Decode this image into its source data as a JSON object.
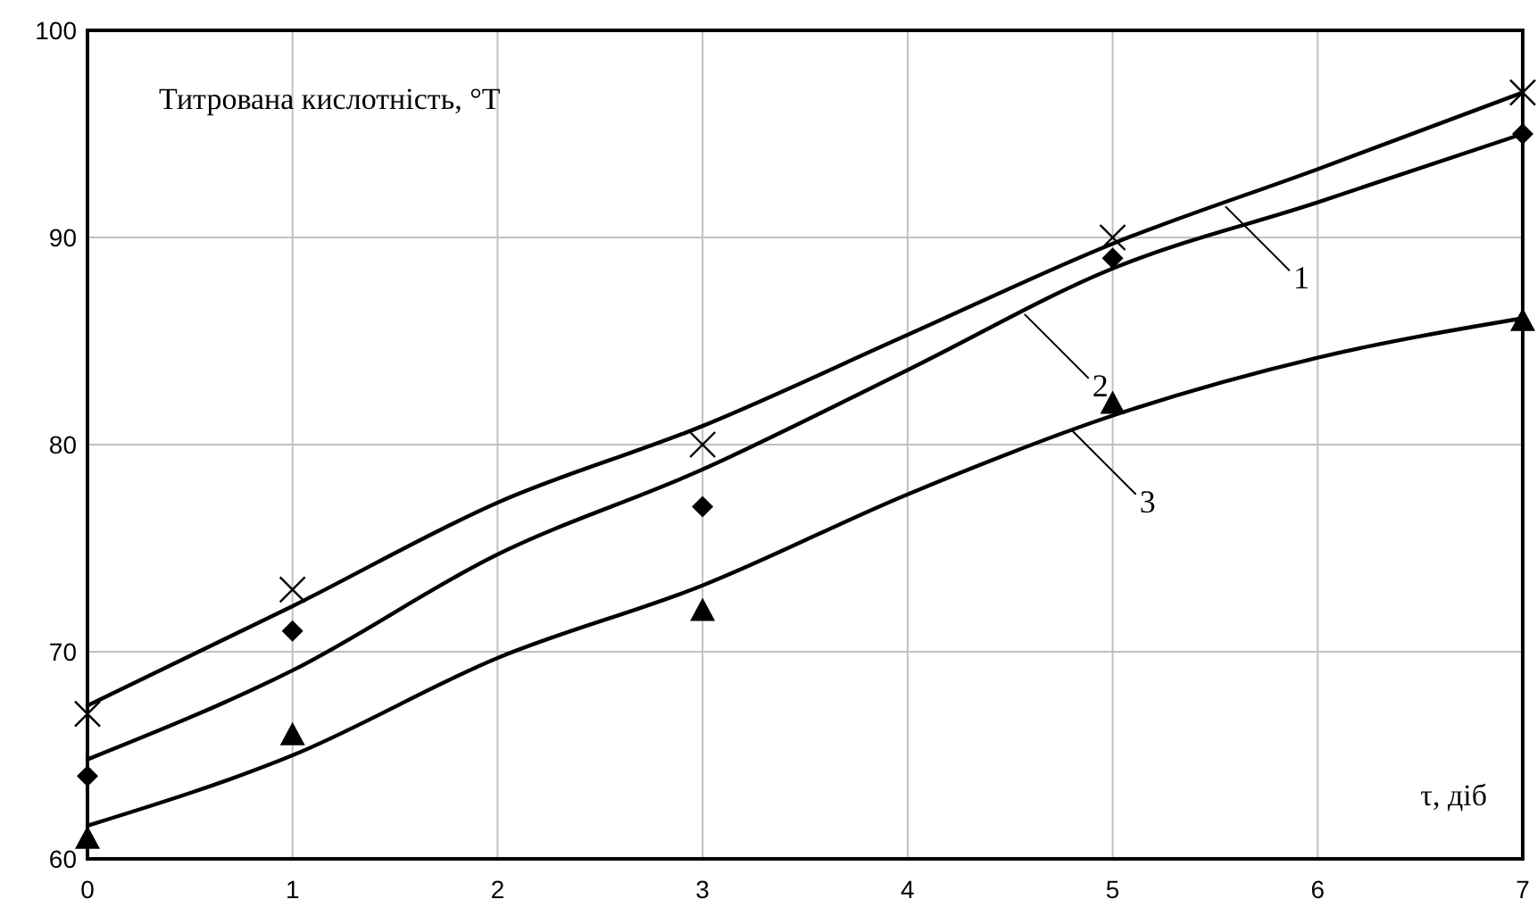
{
  "chart_data": {
    "type": "scatter",
    "xlabel": "τ, діб",
    "ylabel": "Титрована кислотність, °T",
    "xlim": [
      0,
      7
    ],
    "xticks": [
      0,
      1,
      2,
      3,
      4,
      5,
      6,
      7
    ],
    "ylim": [
      60,
      100
    ],
    "yticks": [
      60,
      70,
      80,
      90,
      100
    ],
    "grid": true,
    "series": [
      {
        "type": "line",
        "color": "#000000",
        "marker": "none",
        "x": [
          0,
          1,
          2,
          3,
          4,
          5,
          6,
          7
        ],
        "values": [
          67.4,
          72.2,
          77.2,
          80.9,
          85.3,
          89.7,
          93.3,
          97.0
        ]
      },
      {
        "type": "line",
        "color": "#000000",
        "marker": "none",
        "x": [
          0,
          1,
          2,
          3,
          4,
          5,
          6,
          7
        ],
        "values": [
          64.8,
          69.1,
          74.7,
          78.8,
          83.6,
          88.5,
          91.7,
          95.0
        ]
      },
      {
        "type": "line",
        "color": "#000000",
        "marker": "none",
        "x": [
          0,
          1,
          2,
          3,
          4,
          5,
          6,
          7
        ],
        "values": [
          61.6,
          65.0,
          69.7,
          73.2,
          77.6,
          81.4,
          84.2,
          86.1
        ]
      },
      {
        "color": "#000000",
        "marker": "cross",
        "x": [
          0,
          1,
          3,
          5,
          7
        ],
        "values": [
          67,
          73,
          80,
          90,
          97
        ]
      },
      {
        "color": "#000000",
        "marker": "diamond",
        "x": [
          0,
          1,
          3,
          5,
          7
        ],
        "values": [
          64,
          71,
          77,
          89,
          95
        ]
      },
      {
        "color": "#000000",
        "marker": "triangle",
        "x": [
          0,
          1,
          3,
          5,
          7
        ],
        "values": [
          61,
          66,
          72,
          82,
          86
        ]
      }
    ],
    "annotations": [
      {
        "text": "1",
        "x": 5.55,
        "y": 91.5
      },
      {
        "text": "2",
        "x": 4.57,
        "y": 86.3
      },
      {
        "text": "3",
        "x": 4.8,
        "y": 80.7
      }
    ]
  }
}
